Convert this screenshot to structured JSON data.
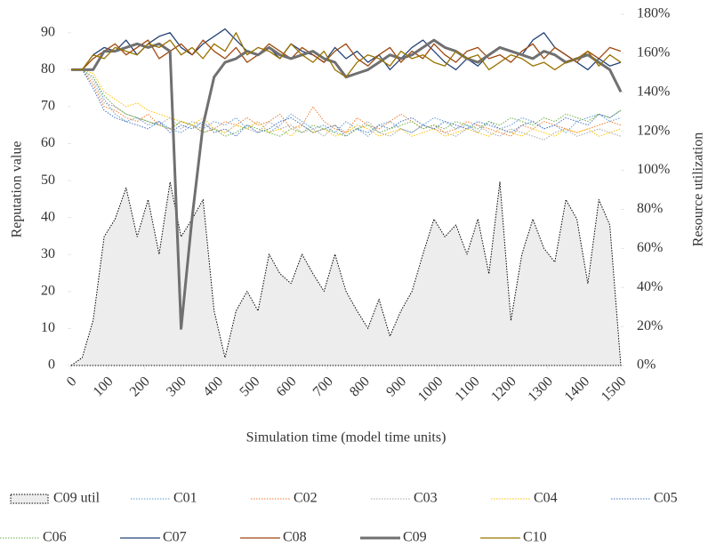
{
  "chart_data": {
    "type": "line",
    "x_label": "Simulation time (model time units)",
    "y_label": "Reputation value",
    "y2_label": "Resource utilization",
    "x": [
      0,
      30,
      60,
      90,
      120,
      150,
      180,
      210,
      240,
      270,
      300,
      330,
      360,
      390,
      420,
      450,
      480,
      510,
      540,
      570,
      600,
      630,
      660,
      690,
      720,
      750,
      780,
      810,
      840,
      870,
      900,
      930,
      960,
      990,
      1020,
      1050,
      1080,
      1110,
      1140,
      1170,
      1200,
      1230,
      1260,
      1290,
      1320,
      1350,
      1380,
      1410,
      1440,
      1470,
      1500
    ],
    "xlim": [
      0,
      1500
    ],
    "xticks": [
      0,
      100,
      200,
      300,
      400,
      500,
      600,
      700,
      800,
      900,
      1000,
      1100,
      1200,
      1300,
      1400,
      1500
    ],
    "ylim": [
      0,
      95
    ],
    "yticks": [
      0,
      10,
      20,
      30,
      40,
      50,
      60,
      70,
      80,
      90
    ],
    "y2lim": [
      0,
      180
    ],
    "y2ticks": [
      {
        "value": 0,
        "label": "0%"
      },
      {
        "value": 20,
        "label": "20%"
      },
      {
        "value": 40,
        "label": "40%"
      },
      {
        "value": 60,
        "label": "60%"
      },
      {
        "value": 80,
        "label": "80%"
      },
      {
        "value": 100,
        "label": "100%"
      },
      {
        "value": 120,
        "label": "120%"
      },
      {
        "value": 140,
        "label": "140%"
      },
      {
        "value": 160,
        "label": "160%"
      },
      {
        "value": 180,
        "label": "180%"
      }
    ],
    "legend": "bottom",
    "series": [
      {
        "name": "C09 util",
        "axis": "y2",
        "kind": "area",
        "color": "#000000",
        "fill": "#ededed",
        "dashed": true,
        "width": 1,
        "values": [
          0,
          4,
          23,
          66,
          75,
          91,
          66,
          85,
          57,
          94,
          66,
          75,
          85,
          28,
          4,
          28,
          38,
          28,
          57,
          47,
          42,
          57,
          47,
          38,
          57,
          38,
          28,
          19,
          34,
          15,
          28,
          38,
          57,
          75,
          66,
          72,
          57,
          75,
          47,
          94,
          23,
          57,
          75,
          60,
          53,
          85,
          75,
          42,
          85,
          72,
          0
        ]
      },
      {
        "name": "C01",
        "color": "#5b9bd5",
        "dashed": true,
        "width": 1,
        "values": [
          80,
          80,
          78,
          72,
          68,
          66,
          67,
          65,
          66,
          64,
          63,
          65,
          64,
          66,
          65,
          67,
          64,
          66,
          63,
          65,
          68,
          66,
          64,
          65,
          63,
          66,
          64,
          62,
          65,
          66,
          64,
          63,
          65,
          67,
          66,
          64,
          65,
          63,
          66,
          64,
          65,
          67,
          66,
          64,
          65,
          63,
          66,
          67,
          68,
          66,
          67
        ]
      },
      {
        "name": "C02",
        "color": "#ed7d31",
        "dashed": true,
        "width": 1,
        "values": [
          80,
          80,
          76,
          70,
          69,
          67,
          66,
          68,
          65,
          64,
          66,
          65,
          63,
          64,
          66,
          65,
          67,
          65,
          66,
          68,
          64,
          65,
          70,
          66,
          64,
          63,
          67,
          65,
          64,
          66,
          68,
          66,
          64,
          65,
          63,
          64,
          66,
          65,
          64,
          63,
          62,
          65,
          64,
          66,
          65,
          64,
          63,
          64,
          65,
          66,
          65
        ]
      },
      {
        "name": "C03",
        "color": "#a5a5a5",
        "dashed": true,
        "width": 1,
        "values": [
          80,
          80,
          77,
          71,
          70,
          68,
          67,
          66,
          65,
          67,
          64,
          66,
          65,
          64,
          63,
          65,
          64,
          63,
          66,
          64,
          65,
          63,
          64,
          62,
          65,
          63,
          64,
          66,
          63,
          62,
          64,
          63,
          65,
          64,
          63,
          62,
          64,
          65,
          63,
          62,
          64,
          63,
          62,
          61,
          63,
          64,
          62,
          63,
          64,
          63,
          62
        ]
      },
      {
        "name": "C04",
        "color": "#ffc000",
        "dashed": true,
        "width": 1,
        "values": [
          80,
          80,
          79,
          74,
          72,
          70,
          71,
          69,
          68,
          67,
          66,
          65,
          67,
          64,
          63,
          65,
          64,
          66,
          63,
          64,
          62,
          65,
          63,
          64,
          62,
          63,
          65,
          64,
          62,
          63,
          64,
          62,
          63,
          64,
          62,
          63,
          64,
          63,
          62,
          64,
          63,
          62,
          64,
          63,
          62,
          64,
          63,
          64,
          62,
          63,
          64
        ]
      },
      {
        "name": "C05",
        "color": "#4472c4",
        "dashed": true,
        "width": 1,
        "values": [
          80,
          80,
          75,
          69,
          67,
          66,
          65,
          64,
          66,
          63,
          65,
          64,
          66,
          63,
          64,
          62,
          65,
          63,
          64,
          66,
          67,
          65,
          63,
          64,
          65,
          62,
          64,
          63,
          65,
          64,
          66,
          67,
          65,
          64,
          66,
          65,
          64,
          66,
          65,
          64,
          63,
          65,
          66,
          64,
          65,
          67,
          66,
          65,
          68,
          67,
          69
        ]
      },
      {
        "name": "C06",
        "color": "#70ad47",
        "dashed": true,
        "width": 1,
        "values": [
          80,
          80,
          78,
          73,
          70,
          68,
          67,
          66,
          65,
          64,
          66,
          65,
          63,
          64,
          62,
          63,
          65,
          64,
          63,
          62,
          64,
          63,
          65,
          64,
          63,
          62,
          64,
          65,
          63,
          64,
          65,
          66,
          64,
          65,
          64,
          66,
          65,
          64,
          66,
          65,
          67,
          66,
          65,
          67,
          66,
          68,
          67,
          66,
          68,
          67,
          69
        ]
      },
      {
        "name": "C07",
        "color": "#264478",
        "dashed": false,
        "width": 1.3,
        "values": [
          80,
          80,
          84,
          86,
          85,
          88,
          84,
          87,
          89,
          90,
          86,
          84,
          87,
          89,
          91,
          88,
          85,
          84,
          86,
          83,
          87,
          85,
          84,
          82,
          86,
          83,
          85,
          82,
          84,
          80,
          83,
          86,
          88,
          85,
          82,
          80,
          83,
          81,
          84,
          86,
          85,
          84,
          88,
          90,
          86,
          84,
          82,
          80,
          83,
          81,
          82
        ]
      },
      {
        "name": "C08",
        "color": "#9e480e",
        "dashed": false,
        "width": 1.3,
        "values": [
          80,
          80,
          83,
          85,
          87,
          84,
          86,
          88,
          83,
          85,
          87,
          84,
          88,
          85,
          83,
          86,
          82,
          84,
          87,
          85,
          83,
          86,
          84,
          82,
          85,
          87,
          83,
          81,
          84,
          86,
          82,
          85,
          83,
          87,
          84,
          82,
          85,
          86,
          83,
          84,
          82,
          85,
          87,
          83,
          86,
          84,
          82,
          85,
          83,
          86,
          85
        ]
      },
      {
        "name": "C09",
        "color": "#707070",
        "dashed": false,
        "width": 3,
        "values": [
          80,
          80,
          80,
          85,
          85,
          86,
          87,
          86,
          87,
          85,
          10,
          40,
          65,
          78,
          82,
          83,
          85,
          84,
          86,
          84,
          83,
          84,
          85,
          83,
          82,
          78,
          79,
          80,
          82,
          84,
          83,
          84,
          86,
          88,
          86,
          85,
          83,
          82,
          84,
          86,
          85,
          84,
          83,
          85,
          84,
          82,
          83,
          84,
          82,
          80,
          74
        ]
      },
      {
        "name": "C10",
        "color": "#997300",
        "dashed": false,
        "width": 1.3,
        "values": [
          80,
          80,
          84,
          83,
          86,
          85,
          84,
          87,
          86,
          88,
          84,
          86,
          83,
          87,
          85,
          90,
          84,
          86,
          85,
          83,
          87,
          84,
          82,
          85,
          80,
          78,
          82,
          84,
          83,
          81,
          85,
          83,
          84,
          82,
          81,
          85,
          83,
          84,
          80,
          82,
          84,
          83,
          81,
          82,
          80,
          82,
          83,
          85,
          81,
          84,
          82
        ]
      }
    ]
  }
}
